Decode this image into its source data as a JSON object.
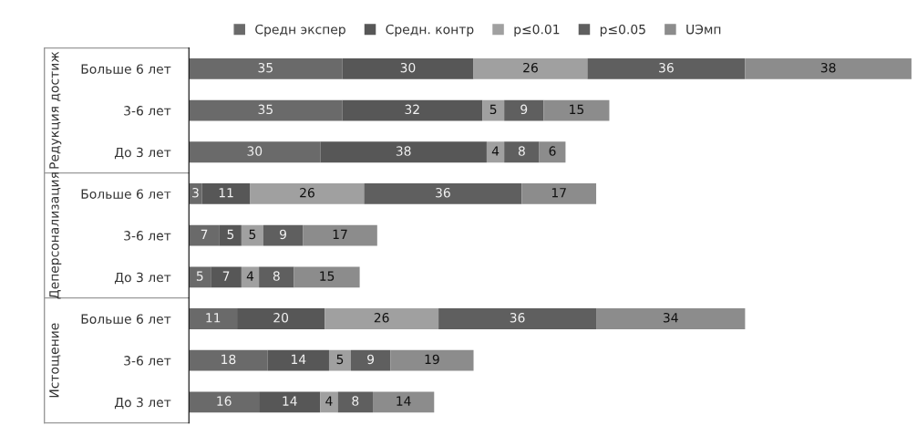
{
  "chart_data": {
    "type": "bar",
    "orientation": "horizontal",
    "stacked": true,
    "data_labels": true,
    "legend": "top",
    "grid": false,
    "categories": [
      "Больше 6 лет",
      "3-6 лет",
      "До 3 лет",
      "Больше 6 лет",
      "3-6 лет",
      "До 3 лет",
      "Больше 6 лет",
      "3-6 лет",
      "До 3 лет"
    ],
    "annotations": [
      "Редукция достиж",
      "Деперсонализация",
      "Истощение"
    ],
    "series": [
      {
        "name": "Средн экспер",
        "color": "#6a6a6a",
        "values": [
          35,
          35,
          30,
          3,
          7,
          5,
          11,
          18,
          16
        ]
      },
      {
        "name": "Средн. контр",
        "color": "#575757",
        "values": [
          30,
          32,
          38,
          11,
          5,
          7,
          20,
          14,
          14
        ]
      },
      {
        "name": "p≤0.01",
        "color": "#a0a0a0",
        "values": [
          26,
          5,
          4,
          26,
          5,
          4,
          26,
          5,
          4
        ]
      },
      {
        "name": "p≤0.05",
        "color": "#5f5f5f",
        "values": [
          36,
          9,
          8,
          36,
          9,
          8,
          36,
          9,
          8
        ]
      },
      {
        "name": "UЭмп",
        "color": "#8c8c8c",
        "values": [
          38,
          15,
          6,
          17,
          17,
          15,
          34,
          19,
          14
        ]
      }
    ]
  }
}
